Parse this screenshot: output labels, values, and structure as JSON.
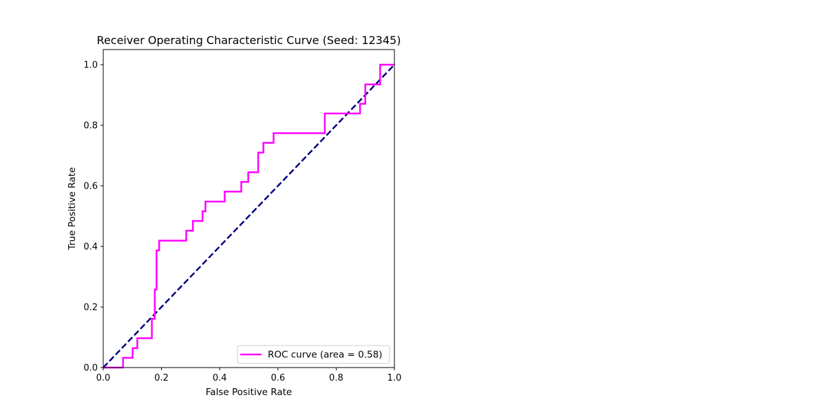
{
  "chart_data": {
    "type": "line",
    "title": "Receiver Operating Characteristic Curve (Seed: 12345)",
    "xlabel": "False Positive Rate",
    "ylabel": "True Positive Rate",
    "xlim": [
      0.0,
      1.0
    ],
    "ylim": [
      0.0,
      1.05
    ],
    "xticks": [
      "0.0",
      "0.2",
      "0.4",
      "0.6",
      "0.8",
      "1.0"
    ],
    "yticks": [
      "0.0",
      "0.2",
      "0.4",
      "0.6",
      "0.8",
      "1.0"
    ],
    "grid": false,
    "legend_position": "lower right",
    "series": [
      {
        "name": "ROC curve (area = 0.58)",
        "color": "#ff00ff",
        "linestyle": "solid",
        "x": [
          0.0,
          0.068,
          0.068,
          0.101,
          0.101,
          0.117,
          0.117,
          0.167,
          0.167,
          0.177,
          0.177,
          0.183,
          0.183,
          0.192,
          0.192,
          0.285,
          0.285,
          0.308,
          0.308,
          0.341,
          0.341,
          0.351,
          0.351,
          0.417,
          0.417,
          0.474,
          0.474,
          0.498,
          0.498,
          0.532,
          0.532,
          0.55,
          0.55,
          0.585,
          0.585,
          0.761,
          0.761,
          0.882,
          0.882,
          0.9,
          0.9,
          0.951,
          0.951,
          1.0
        ],
        "y": [
          0.0,
          0.0,
          0.032,
          0.032,
          0.064,
          0.064,
          0.097,
          0.097,
          0.161,
          0.161,
          0.258,
          0.258,
          0.387,
          0.387,
          0.419,
          0.419,
          0.452,
          0.452,
          0.484,
          0.484,
          0.516,
          0.516,
          0.548,
          0.548,
          0.581,
          0.581,
          0.613,
          0.613,
          0.645,
          0.645,
          0.71,
          0.71,
          0.742,
          0.742,
          0.774,
          0.774,
          0.839,
          0.839,
          0.871,
          0.871,
          0.935,
          0.935,
          1.0,
          1.0
        ]
      },
      {
        "name": "",
        "color": "#000080",
        "linestyle": "dashed",
        "x": [
          0.0,
          1.0
        ],
        "y": [
          0.0,
          1.0
        ]
      }
    ]
  }
}
